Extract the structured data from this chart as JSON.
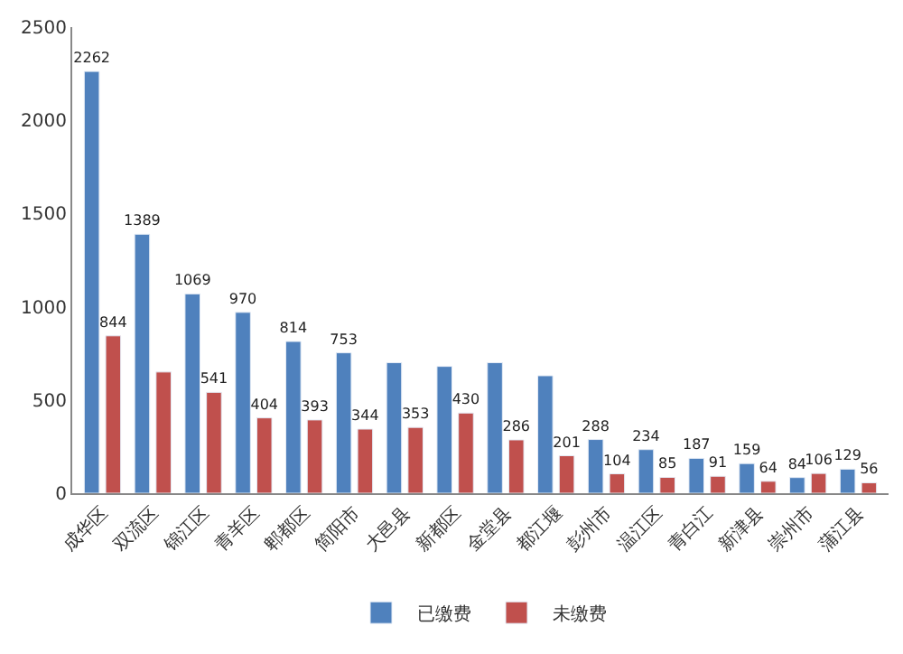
{
  "chart_data": {
    "type": "bar",
    "categories": [
      "成华区",
      "双流区",
      "锦江区",
      "青羊区",
      "郫都区",
      "简阳市",
      "大邑县",
      "新都区",
      "金堂县",
      "都江堰",
      "彭州市",
      "温江区",
      "青白江",
      "新津县",
      "崇州市",
      "蒲江县"
    ],
    "series": [
      {
        "name": "已缴费",
        "color": "#4f81bd",
        "values": [
          2262,
          1389,
          1069,
          970,
          814,
          753,
          700,
          680,
          700,
          630,
          288,
          234,
          187,
          159,
          84,
          129
        ],
        "value_labels": [
          "2262",
          "1389",
          "1069",
          "970",
          "814",
          "753",
          null,
          null,
          null,
          null,
          "288",
          "234",
          "187",
          "159",
          "84",
          "129"
        ]
      },
      {
        "name": "未缴费",
        "color": "#c0504d",
        "values": [
          844,
          650,
          541,
          404,
          393,
          344,
          353,
          430,
          286,
          201,
          104,
          85,
          91,
          64,
          106,
          56
        ],
        "value_labels": [
          "844",
          null,
          "541",
          "404",
          "393",
          "344",
          "353",
          "430",
          "286",
          "201",
          "104",
          "85",
          "91",
          "64",
          "106",
          "56"
        ]
      }
    ],
    "ylim": [
      0,
      2500
    ],
    "yticks": [
      0,
      500,
      1000,
      1500,
      2000,
      2500
    ],
    "legend": "bottom"
  }
}
